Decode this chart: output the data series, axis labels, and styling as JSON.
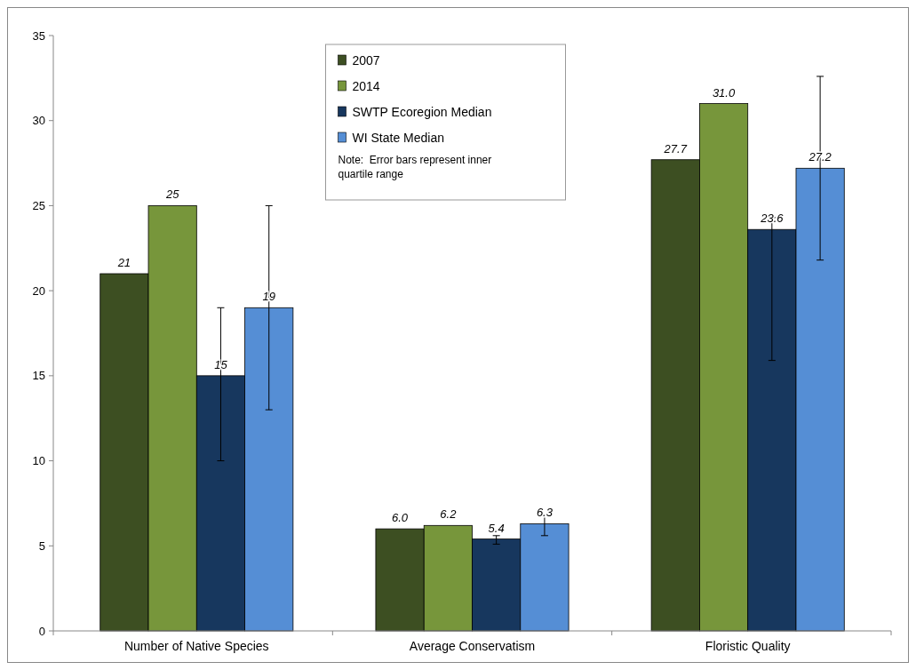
{
  "chart_data": {
    "type": "bar",
    "categories": [
      "Number of Native Species",
      "Average Conservatism",
      "Floristic Quality"
    ],
    "series": [
      {
        "name": "2007",
        "color": "#3d4f22",
        "values": [
          21,
          6.0,
          27.7
        ],
        "value_labels": [
          "21",
          "6.0",
          "27.7"
        ]
      },
      {
        "name": "2014",
        "color": "#77963b",
        "values": [
          25,
          6.2,
          31.0
        ],
        "value_labels": [
          "25",
          "6.2",
          "31.0"
        ]
      },
      {
        "name": "SWTP Ecoregion Median",
        "color": "#17375e",
        "values": [
          15,
          5.4,
          23.6
        ],
        "value_labels": [
          "15",
          "5.4",
          "23.6"
        ],
        "errors": [
          [
            10,
            19
          ],
          [
            5.1,
            5.6
          ],
          [
            15.9,
            24.3
          ]
        ]
      },
      {
        "name": "WI State Median",
        "color": "#558ed5",
        "values": [
          19,
          6.3,
          27.2
        ],
        "value_labels": [
          "19",
          "6.3",
          "27.2"
        ],
        "errors": [
          [
            13,
            25
          ],
          [
            5.6,
            6.8
          ],
          [
            21.8,
            32.6
          ]
        ]
      }
    ],
    "ylim": [
      0,
      35
    ],
    "yticks": [
      0,
      5,
      10,
      15,
      20,
      25,
      30,
      35
    ],
    "grid": false,
    "legend": "top",
    "annotations": [
      "Note:  Error bars represent inner quartile range"
    ]
  }
}
